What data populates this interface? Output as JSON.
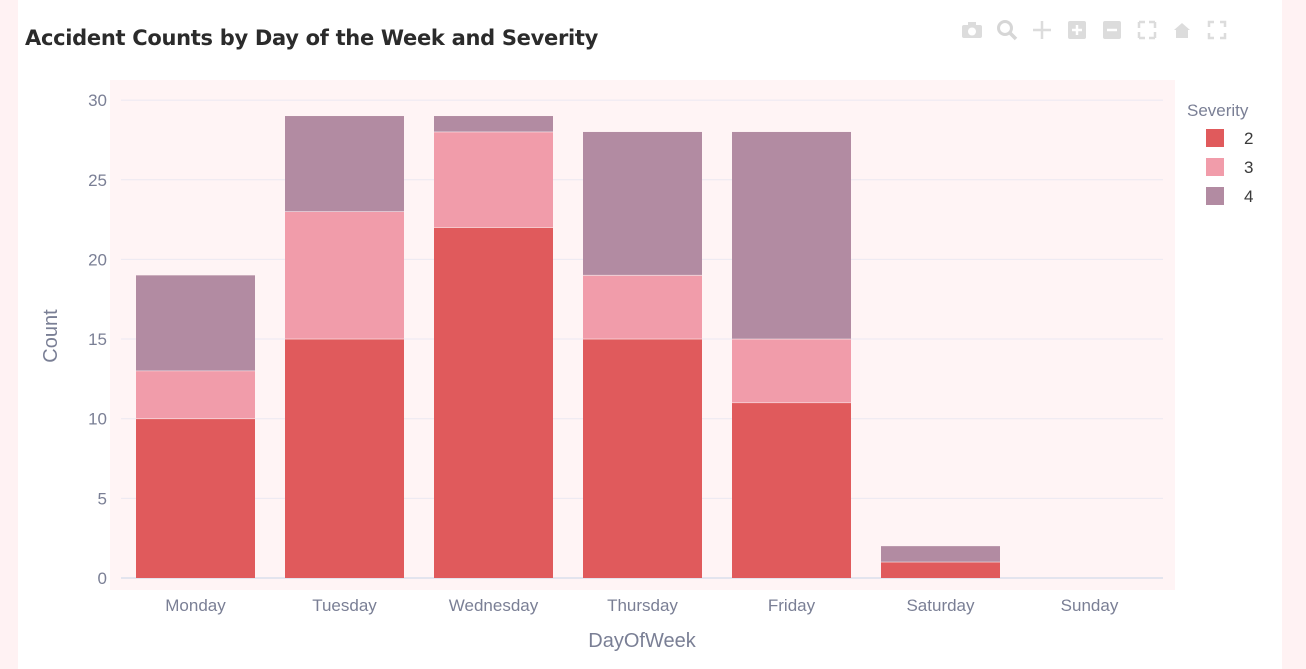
{
  "chart_data": {
    "type": "bar",
    "barmode": "stack",
    "title": "Accident Counts by Day of the Week and Severity",
    "xlabel": "DayOfWeek",
    "ylabel": "Count",
    "categories": [
      "Monday",
      "Tuesday",
      "Wednesday",
      "Thursday",
      "Friday",
      "Saturday",
      "Sunday"
    ],
    "ylim": [
      0,
      31
    ],
    "yticks": [
      0,
      5,
      10,
      15,
      20,
      25,
      30
    ],
    "grid": true,
    "legend_title": "Severity",
    "legend_position": "top-right",
    "series": [
      {
        "name": "2",
        "color": "#e05a5c",
        "values": [
          10,
          15,
          22,
          15,
          11,
          1,
          0
        ]
      },
      {
        "name": "3",
        "color": "#f19caa",
        "values": [
          3,
          8,
          6,
          4,
          4,
          0,
          0
        ]
      },
      {
        "name": "4",
        "color": "#b28ba2",
        "values": [
          6,
          6,
          1,
          9,
          13,
          1,
          0
        ]
      }
    ],
    "plot_bg": "#fff4f5"
  },
  "modebar_icons": [
    "camera-icon",
    "zoom-icon",
    "pan-icon",
    "zoom-in-icon",
    "zoom-out-icon",
    "autoscale-icon",
    "home-icon",
    "fullscreen-icon"
  ]
}
